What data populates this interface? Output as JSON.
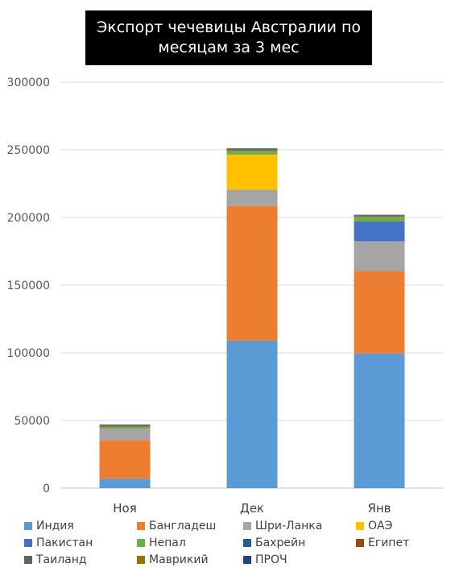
{
  "chart_data": {
    "type": "bar",
    "stacked": true,
    "title": "Экспорт чечевицы Австралии по месяцам за 3 мес",
    "categories": [
      "Ноя",
      "Дек",
      "Янв"
    ],
    "ylim": [
      0,
      300000
    ],
    "yticks": [
      0,
      50000,
      100000,
      150000,
      200000,
      250000,
      300000
    ],
    "grid": true,
    "legend_position": "bottom",
    "series": [
      {
        "name": "Индия",
        "color": "#5b9bd5",
        "values": [
          7000,
          109000,
          99500
        ]
      },
      {
        "name": "Бангладеш",
        "color": "#ed7d31",
        "values": [
          28500,
          99500,
          61000
        ]
      },
      {
        "name": "Шри-Ланка",
        "color": "#a5a5a5",
        "values": [
          8500,
          12000,
          22000
        ]
      },
      {
        "name": "ОАЭ",
        "color": "#ffc000",
        "values": [
          0,
          26000,
          0
        ]
      },
      {
        "name": "Пакистан",
        "color": "#4472c4",
        "values": [
          0,
          0,
          14500
        ]
      },
      {
        "name": "Непал",
        "color": "#70ad47",
        "values": [
          1500,
          3000,
          3500
        ]
      },
      {
        "name": "Бахрейн",
        "color": "#255e91",
        "values": [
          0,
          0,
          0
        ]
      },
      {
        "name": "Египет",
        "color": "#9e480e",
        "values": [
          500,
          500,
          500
        ]
      },
      {
        "name": "Таиланд",
        "color": "#636363",
        "values": [
          700,
          800,
          700
        ]
      },
      {
        "name": "Маврикий",
        "color": "#997300",
        "values": [
          0,
          0,
          0
        ]
      },
      {
        "name": "ПРОЧ",
        "color": "#264478",
        "values": [
          300,
          300,
          300
        ]
      }
    ]
  }
}
